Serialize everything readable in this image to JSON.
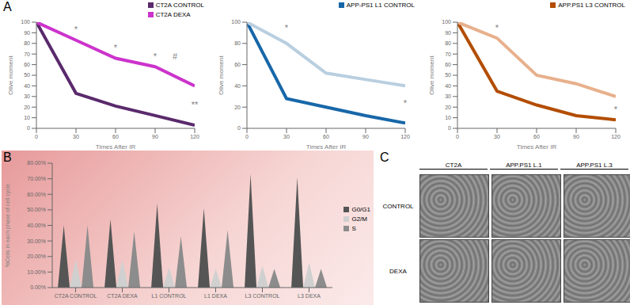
{
  "chart_data": [
    {
      "type": "line",
      "panel": "A",
      "y_label": "Olive moment",
      "x_label": "Times After IR",
      "x": [
        0,
        30,
        60,
        90,
        120
      ],
      "xlim": [
        0,
        120
      ],
      "xticks": [
        0,
        30,
        60,
        90,
        120
      ],
      "ylim": [
        0,
        100
      ],
      "yticks": [
        0,
        10,
        20,
        30,
        40,
        50,
        60,
        70,
        80,
        90,
        100
      ],
      "grid": false,
      "legend": "top-right",
      "series": [
        {
          "name": "CT2A CONTROL",
          "color": "#5a2a6c",
          "values": [
            100,
            33,
            21,
            12,
            3
          ]
        },
        {
          "name": "CT2A DEXA",
          "color": "#cc33cc",
          "values": [
            100,
            83,
            66,
            58,
            40
          ]
        }
      ],
      "annotations": [
        {
          "text": "*",
          "x": 30,
          "y": 93
        },
        {
          "text": "*",
          "x": 60,
          "y": 76
        },
        {
          "text": "*",
          "x": 90,
          "y": 68
        },
        {
          "text": "#",
          "x": 105,
          "y": 68
        },
        {
          "text": "**",
          "x": 120,
          "y": 22
        }
      ]
    },
    {
      "type": "line",
      "y_label": "Olive moment",
      "x_label": "Times After IR",
      "x": [
        0,
        30,
        60,
        90,
        120
      ],
      "xlim": [
        0,
        120
      ],
      "xticks": [
        0,
        30,
        60,
        90,
        120
      ],
      "ylim": [
        0,
        100
      ],
      "yticks": [
        0,
        20,
        40,
        60,
        80,
        100
      ],
      "grid": false,
      "legend": "top-right",
      "series": [
        {
          "name": "APP-PS1 L1 CONTROL",
          "color": "#1767a8",
          "values": [
            100,
            28,
            20,
            12,
            5
          ]
        },
        {
          "color": "#b9cfe0",
          "values": [
            100,
            80,
            52,
            46,
            40
          ]
        }
      ],
      "annotations": [
        {
          "text": "*",
          "x": 30,
          "y": 95
        },
        {
          "text": "*",
          "x": 120,
          "y": 24
        }
      ]
    },
    {
      "type": "line",
      "y_label": "Olive moment",
      "x_label": "Times After IR",
      "x": [
        0,
        30,
        60,
        90,
        120
      ],
      "xlim": [
        0,
        120
      ],
      "xticks": [
        0,
        30,
        60,
        90,
        120
      ],
      "ylim": [
        0,
        100
      ],
      "yticks": [
        0,
        10,
        20,
        30,
        40,
        50,
        60,
        70,
        80,
        90,
        100
      ],
      "grid": false,
      "legend": "top-right",
      "series": [
        {
          "name": "APP.PS1 L3 CONTROL",
          "color": "#b34d00",
          "values": [
            100,
            35,
            22,
            12,
            8
          ]
        },
        {
          "color": "#e8b08c",
          "values": [
            100,
            85,
            50,
            42,
            30
          ]
        }
      ],
      "annotations": [
        {
          "text": "*",
          "x": 30,
          "y": 95
        },
        {
          "text": "*",
          "x": 120,
          "y": 18
        }
      ]
    },
    {
      "type": "bar",
      "panel": "B",
      "y_label": "%Cells in each phase of cell cycle",
      "categories": [
        "CT2A CONTROL",
        "CT2A DEXA",
        "L1 CONTROL",
        "L1 DEXA",
        "L3 CONTROL",
        "L3 DEXA"
      ],
      "ylim": [
        0,
        80
      ],
      "yticks": [
        {
          "value": 0,
          "label": "0.00%"
        },
        {
          "value": 10,
          "label": "10.00%"
        },
        {
          "value": 20,
          "label": "20.00%"
        },
        {
          "value": 30,
          "label": "30.00%"
        },
        {
          "value": 40,
          "label": "40.00%"
        },
        {
          "value": 50,
          "label": "50.00%"
        },
        {
          "value": 60,
          "label": "60.00%"
        },
        {
          "value": 70,
          "label": "70.00%"
        },
        {
          "value": 80,
          "label": "80.00%"
        }
      ],
      "grid": false,
      "legend": "right",
      "series": [
        {
          "name": "G0/G1",
          "color": "#555555",
          "values": [
            40,
            44,
            54,
            51,
            73,
            71
          ]
        },
        {
          "name": "G2/M",
          "color": "#d0d0d0",
          "values": [
            18,
            18,
            13,
            12,
            14,
            16
          ]
        },
        {
          "name": "S",
          "color": "#8c8c8c",
          "values": [
            40,
            36,
            33,
            37,
            12,
            12
          ]
        }
      ]
    },
    {
      "type": "image_grid",
      "panel": "C",
      "columns": [
        "CT2A",
        "APP.PS1 L.1",
        "APP.PS1 L.3"
      ],
      "rows": [
        "CONTROL",
        "DEXA"
      ]
    }
  ]
}
